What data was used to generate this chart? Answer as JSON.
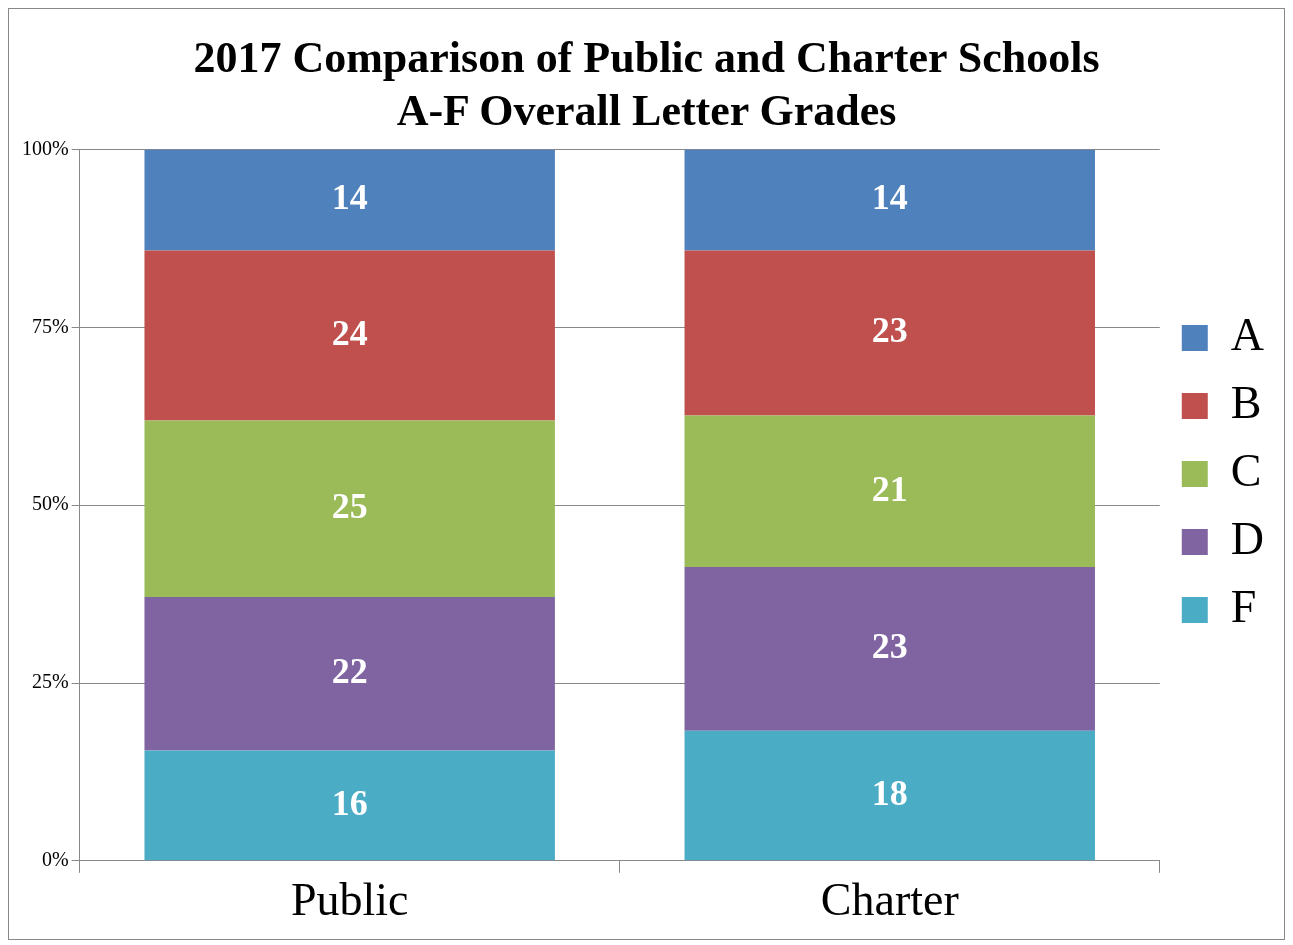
{
  "chart_data": {
    "type": "bar",
    "stacked": true,
    "title": "2017 Comparison of Public and Charter Schools\nA-F Overall Letter Grades",
    "categories": [
      "Public",
      "Charter"
    ],
    "series": [
      {
        "name": "F",
        "color": "#4bacc6",
        "values": [
          15.5,
          18.3
        ],
        "value_labels": [
          "16",
          "18"
        ]
      },
      {
        "name": "D",
        "color": "#8064a2",
        "values": [
          21.6,
          23.0
        ],
        "value_labels": [
          "22",
          "23"
        ]
      },
      {
        "name": "C",
        "color": "#9bbb59",
        "values": [
          24.8,
          21.3
        ],
        "value_labels": [
          "25",
          "21"
        ]
      },
      {
        "name": "B",
        "color": "#c0504d",
        "values": [
          23.9,
          23.2
        ],
        "value_labels": [
          "24",
          "23"
        ]
      },
      {
        "name": "A",
        "color": "#4f81bd",
        "values": [
          14.2,
          14.2
        ],
        "value_labels": [
          "14",
          "14"
        ]
      }
    ],
    "ylim": [
      0,
      100
    ],
    "yticks": [
      {
        "value": 0,
        "label": "0%"
      },
      {
        "value": 25,
        "label": "25%"
      },
      {
        "value": 50,
        "label": "50%"
      },
      {
        "value": 75,
        "label": "75%"
      },
      {
        "value": 100,
        "label": "100%"
      }
    ],
    "grid": "y",
    "legend": "right"
  }
}
